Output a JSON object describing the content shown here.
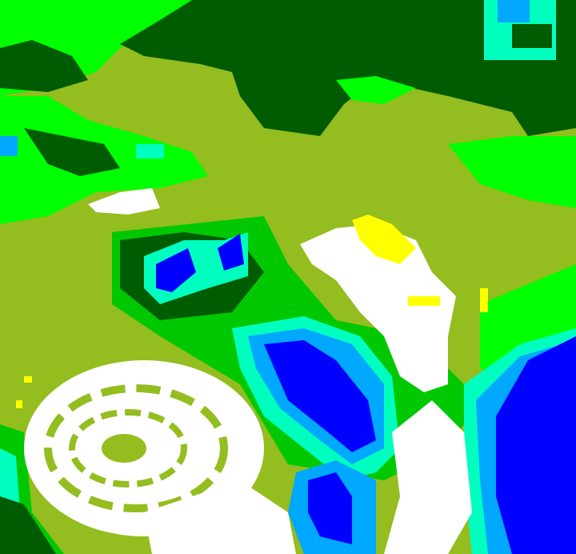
{
  "image": {
    "kind": "false-color satellite classification image",
    "palette": {
      "olive": "#94bd1f",
      "dark_green": "#005c00",
      "bright_green": "#00ff00",
      "mid_green": "#00c800",
      "aqua": "#00ffbf",
      "light_blue": "#00a8ff",
      "blue": "#0000ff",
      "white": "#ffffff",
      "yellow": "#ffff00"
    }
  }
}
